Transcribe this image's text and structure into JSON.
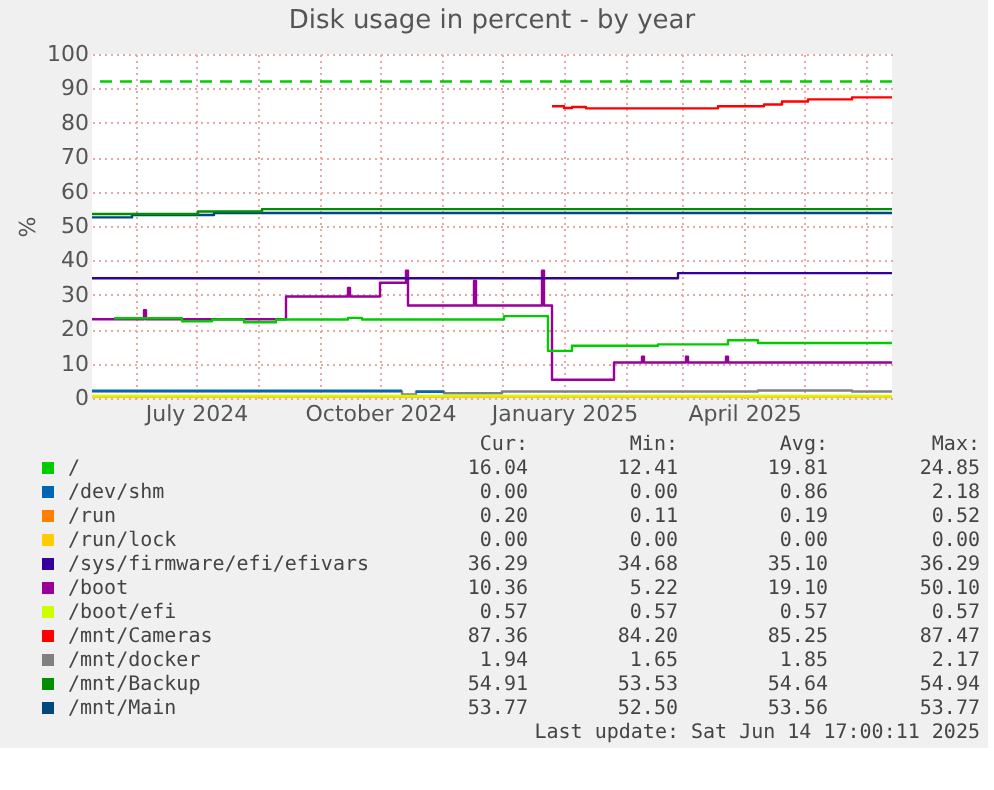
{
  "chart_data": {
    "type": "step",
    "title": "Disk usage in percent - by year",
    "ylabel": "%",
    "xlim": [
      "2024-05-10",
      "2025-06-14"
    ],
    "xticks": [
      {
        "value": "2024-06-01",
        "label": null
      },
      {
        "value": "2024-07-01",
        "label": "July 2024"
      },
      {
        "value": "2024-08-01",
        "label": null
      },
      {
        "value": "2024-09-01",
        "label": null
      },
      {
        "value": "2024-10-01",
        "label": "October 2024"
      },
      {
        "value": "2024-11-01",
        "label": null
      },
      {
        "value": "2024-12-01",
        "label": null
      },
      {
        "value": "2025-01-01",
        "label": "January 2025"
      },
      {
        "value": "2025-02-01",
        "label": null
      },
      {
        "value": "2025-03-01",
        "label": null
      },
      {
        "value": "2025-04-01",
        "label": "April 2025"
      },
      {
        "value": "2025-05-01",
        "label": null
      },
      {
        "value": "2025-06-01",
        "label": null
      }
    ],
    "ylim": [
      0,
      100
    ],
    "yticks": [
      0,
      10,
      20,
      30,
      40,
      50,
      60,
      70,
      80,
      90,
      100
    ],
    "grid": true,
    "legend": "bottom",
    "ref_lines": [
      {
        "axis": "y",
        "value": 92,
        "color": "#00cc00",
        "line_style": "dashed"
      }
    ],
    "series": [
      {
        "name": "/",
        "color": "#00cc00",
        "x": [
          "2024-05-21",
          "2024-06-24",
          "2024-07-09",
          "2024-07-25",
          "2024-08-10",
          "2024-09-15",
          "2024-09-22",
          "2024-12-02",
          "2024-12-24",
          "2025-01-05",
          "2025-02-17",
          "2025-03-24",
          "2025-04-08",
          "2025-06-14"
        ],
        "values": [
          23.2,
          22.3,
          22.8,
          22.0,
          22.8,
          23.3,
          22.8,
          23.8,
          13.7,
          15.2,
          15.6,
          16.8,
          16.0,
          16.0
        ]
      },
      {
        "name": "/dev/shm",
        "color": "#0066b3",
        "x": [
          "2024-05-10",
          "2024-10-12",
          "2024-10-13",
          "2024-10-19",
          "2024-11-02"
        ],
        "values": [
          2.1,
          2.1,
          null,
          1.8,
          1.8
        ]
      },
      {
        "name": "/run",
        "color": "#ff8000"
      },
      {
        "name": "/run/lock",
        "color": "#ffcc00",
        "x": [
          "2024-05-10",
          "2025-06-14"
        ],
        "values": [
          0.0,
          0.0
        ]
      },
      {
        "name": "/sys/firmware/efi/efivars",
        "color": "#330099",
        "x": [
          "2024-05-10",
          "2025-02-27",
          "2025-06-14"
        ],
        "values": [
          34.8,
          36.3,
          36.3
        ]
      },
      {
        "name": "/boot",
        "color": "#990099",
        "x": [
          "2024-05-10",
          "2024-06-05",
          "2024-06-06",
          "2024-08-15",
          "2024-09-15",
          "2024-09-16",
          "2024-10-01",
          "2024-10-14",
          "2024-10-15",
          "2024-11-17",
          "2024-11-18",
          "2024-12-21",
          "2024-12-22",
          "2024-12-26",
          "2025-01-26",
          "2025-02-09",
          "2025-02-10",
          "2025-03-03",
          "2025-03-04",
          "2025-03-23",
          "2025-03-24",
          "2025-06-14"
        ],
        "values": [
          22.9,
          25.5,
          22.9,
          29.5,
          32.0,
          29.5,
          33.5,
          37.0,
          26.9,
          34.0,
          26.9,
          37.0,
          26.9,
          5.3,
          10.3,
          12.0,
          10.3,
          12.0,
          10.3,
          12.0,
          10.3,
          10.3
        ]
      },
      {
        "name": "/boot/efi",
        "color": "#ccff00",
        "x": [
          "2024-05-10",
          "2025-06-14"
        ],
        "values": [
          0.6,
          0.6
        ]
      },
      {
        "name": "/mnt/Cameras",
        "color": "#ff0000",
        "x": [
          "2024-12-26",
          "2025-01-01",
          "2025-01-05",
          "2025-01-12",
          "2025-03-19",
          "2025-04-11",
          "2025-04-20",
          "2025-05-03",
          "2025-05-25",
          "2025-06-14"
        ],
        "values": [
          84.8,
          84.3,
          84.6,
          84.2,
          84.8,
          85.3,
          86.2,
          86.8,
          87.4,
          87.4
        ]
      },
      {
        "name": "/mnt/docker",
        "color": "#808080",
        "x": [
          "2024-05-10",
          "2024-10-12",
          "2024-10-19",
          "2024-11-02",
          "2024-12-01",
          "2025-04-08",
          "2025-05-25",
          "2025-06-14"
        ],
        "values": [
          1.9,
          1.0,
          1.9,
          1.4,
          1.9,
          2.2,
          1.9,
          1.9
        ]
      },
      {
        "name": "/mnt/Backup",
        "color": "#008f00",
        "x": [
          "2024-05-10",
          "2024-07-02",
          "2024-08-03",
          "2025-06-14"
        ],
        "values": [
          53.5,
          54.2,
          54.9,
          54.9
        ]
      },
      {
        "name": "/mnt/Main",
        "color": "#00487d",
        "x": [
          "2024-05-10",
          "2024-05-30",
          "2024-07-10",
          "2025-06-14"
        ],
        "values": [
          52.5,
          53.2,
          53.8,
          53.8
        ]
      }
    ],
    "annotations": [
      "Cur:",
      "Min:",
      "Avg:",
      "Max:",
      "16.04",
      "12.41",
      "19.81",
      "24.85",
      "0.00",
      "0.00",
      "0.86",
      "2.18",
      "0.20",
      "0.11",
      "0.19",
      "0.52",
      "0.00",
      "0.00",
      "0.00",
      "0.00",
      "36.29",
      "34.68",
      "35.10",
      "36.29",
      "10.36",
      "5.22",
      "19.10",
      "50.10",
      "0.57",
      "0.57",
      "0.57",
      "0.57",
      "87.36",
      "84.20",
      "85.25",
      "87.47",
      "1.94",
      "1.65",
      "1.85",
      "2.17",
      "54.91",
      "53.53",
      "54.64",
      "54.94",
      "53.77",
      "52.50",
      "53.56",
      "53.77",
      "Last update: Sat Jun 14 17:00:11 2025"
    ]
  }
}
